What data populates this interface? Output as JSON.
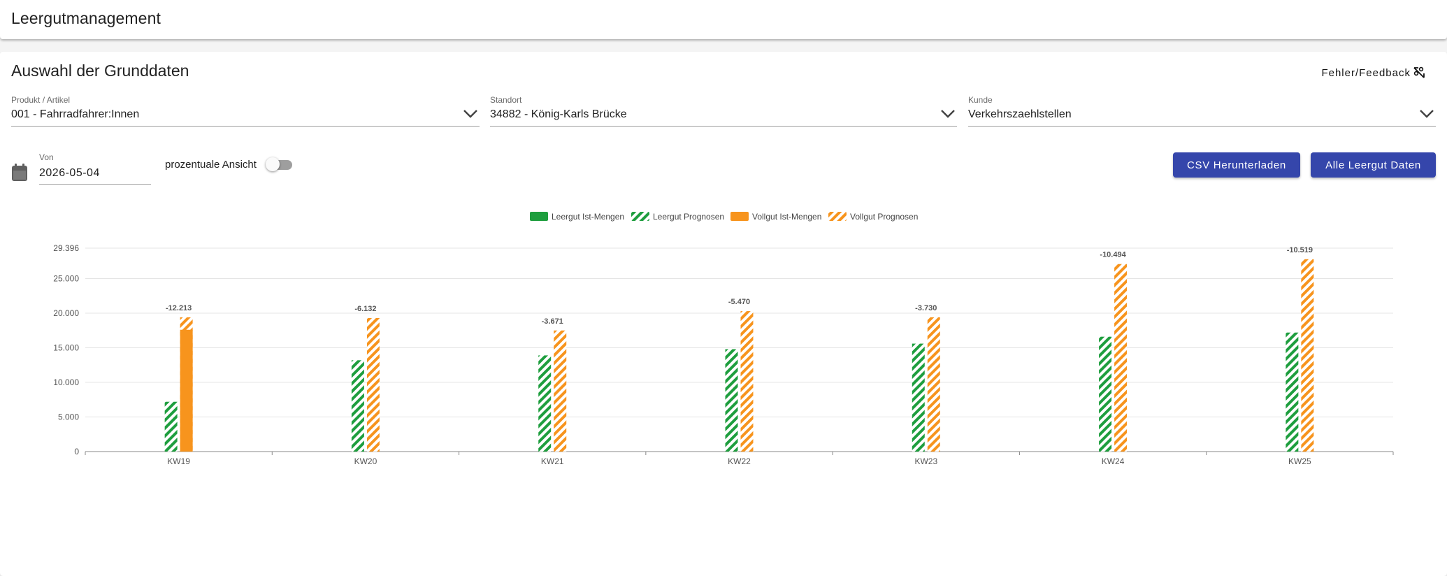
{
  "app": {
    "title": "Leergutmanagement"
  },
  "section": {
    "title": "Auswahl der Grunddaten",
    "feedback_label": "Fehler/Feedback"
  },
  "filters": {
    "product": {
      "label": "Produkt / Artikel",
      "value": "001 - Fahrradfahrer:Innen"
    },
    "location": {
      "label": "Standort",
      "value": "34882 - König-Karls Brücke"
    },
    "customer": {
      "label": "Kunde",
      "value": "Verkehrszaehlstellen"
    }
  },
  "date": {
    "label": "Von",
    "value": "2026-05-04"
  },
  "toggle": {
    "label": "prozentuale Ansicht",
    "checked": false
  },
  "buttons": {
    "csv": "CSV Herunterladen",
    "all": "Alle Leergut Daten"
  },
  "icons": {
    "calendar": "calendar-icon",
    "chevron": "chevron-down-icon",
    "feedback": "bug-icon"
  },
  "colors": {
    "accent": "#3546ab",
    "leergut": "#1e9e3e",
    "vollgut": "#f7941d"
  },
  "chart_data": {
    "type": "bar",
    "categories": [
      "KW19",
      "KW20",
      "KW21",
      "KW22",
      "KW23",
      "KW24",
      "KW25"
    ],
    "series": [
      {
        "name": "Leergut Ist-Mengen",
        "style": "solid",
        "color": "#1e9e3e",
        "values": [
          0,
          0,
          0,
          0,
          0,
          0,
          0
        ]
      },
      {
        "name": "Leergut Prognosen",
        "style": "hatched",
        "color": "#1e9e3e",
        "values": [
          7200,
          13200,
          13900,
          14800,
          15600,
          16600,
          17200
        ]
      },
      {
        "name": "Vollgut Ist-Mengen",
        "style": "solid",
        "color": "#f7941d",
        "values": [
          17600,
          0,
          0,
          0,
          0,
          0,
          0
        ]
      },
      {
        "name": "Vollgut Prognosen",
        "style": "hatched",
        "color": "#f7941d",
        "values": [
          19400,
          19300,
          17500,
          20300,
          19400,
          27100,
          27800
        ]
      }
    ],
    "data_labels": [
      "-12.213",
      "-6.132",
      "-3.671",
      "-5.470",
      "-3.730",
      "-10.494",
      "-10.519"
    ],
    "y_ticks": [
      "0",
      "5.000",
      "10.000",
      "15.000",
      "20.000",
      "25.000",
      "29.396"
    ],
    "y_tick_values": [
      0,
      5000,
      10000,
      15000,
      20000,
      25000,
      29396
    ],
    "ylim": [
      0,
      29396
    ],
    "grid": true,
    "legend_position": "top-center"
  }
}
